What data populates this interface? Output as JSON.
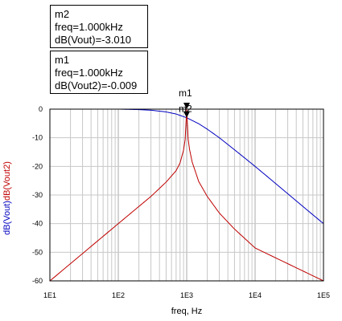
{
  "markers": [
    {
      "name": "m2",
      "freq_text": "freq=1.000kHz",
      "value_text": "dB(Vout)=-3.010"
    },
    {
      "name": "m1",
      "freq_text": "freq=1.000kHz",
      "value_text": "dB(Vout2)=-0.009"
    }
  ],
  "chart_data": {
    "type": "line",
    "xlabel": "freq, Hz",
    "ylabel_parts": [
      "dB(Vout)",
      "dB(Vout2)"
    ],
    "x_scale": "log",
    "xlim": [
      10,
      100000
    ],
    "ylim": [
      -60,
      0
    ],
    "grid": true,
    "x_tick_labels": [
      "1E1",
      "1E2",
      "1E3",
      "1E4",
      "1E5"
    ],
    "y_tick_labels": [
      "0",
      "-10",
      "-20",
      "-30",
      "-40",
      "-50",
      "-60"
    ],
    "colors": {
      "dB(Vout)": "#0000c0",
      "dB(Vout2)": "#c00000"
    },
    "series": [
      {
        "name": "dB(Vout)",
        "x": [
          10,
          100,
          200,
          300,
          500,
          700,
          1000,
          1500,
          2000,
          3000,
          5000,
          7000,
          10000,
          20000,
          50000,
          100000
        ],
        "y": [
          0,
          -0.004,
          -0.17,
          -0.37,
          -0.97,
          -1.7,
          -3.01,
          -5.1,
          -7.0,
          -10.0,
          -14.2,
          -17.0,
          -20.0,
          -26.0,
          -34.0,
          -40.0
        ]
      },
      {
        "name": "dB(Vout2)",
        "x": [
          10,
          100,
          200,
          300,
          500,
          700,
          800,
          900,
          950,
          1000,
          1050,
          1100,
          1200,
          1500,
          2000,
          3000,
          5000,
          10000,
          100000
        ],
        "y": [
          -60,
          -40,
          -34,
          -30.5,
          -25.5,
          -21.5,
          -18.8,
          -14.3,
          -10.6,
          -0.009,
          -10.4,
          -14.0,
          -18.4,
          -25.3,
          -30.5,
          -36.3,
          -41.9,
          -48.5,
          -60
        ]
      }
    ],
    "marker_points": [
      {
        "name": "m1",
        "series": "dB(Vout2)",
        "x": 1000,
        "y": -0.009
      },
      {
        "name": "m2",
        "series": "dB(Vout)",
        "x": 1000,
        "y": -3.01
      }
    ]
  }
}
